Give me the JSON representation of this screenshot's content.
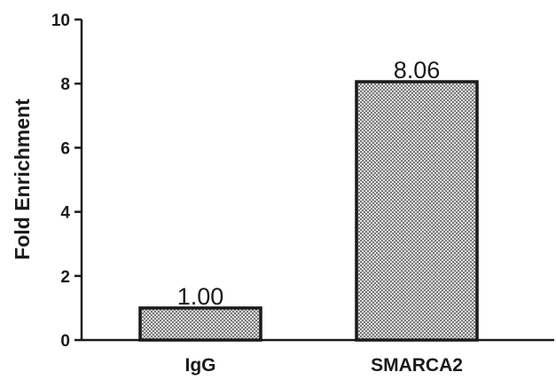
{
  "chart_data": {
    "type": "bar",
    "categories": [
      "IgG",
      "SMARCA2"
    ],
    "values": [
      1.0,
      8.06
    ],
    "data_labels": [
      "1.00",
      "8.06"
    ],
    "ylabel": "Fold Enrichment",
    "xlabel": "",
    "ylim": [
      0,
      10
    ],
    "yticks": [
      0,
      2,
      4,
      6,
      8,
      10
    ],
    "ytick_labels": [
      "0",
      "2",
      "4",
      "6",
      "8",
      "10"
    ],
    "grid": false,
    "legend": "none",
    "bar_fill": "crosshatch-gray",
    "colors": {
      "bar_stroke": "#1a1a1a",
      "axis": "#1a1a1a",
      "pattern_light": "#dedede",
      "pattern_dark": "#7a7a7a"
    }
  }
}
